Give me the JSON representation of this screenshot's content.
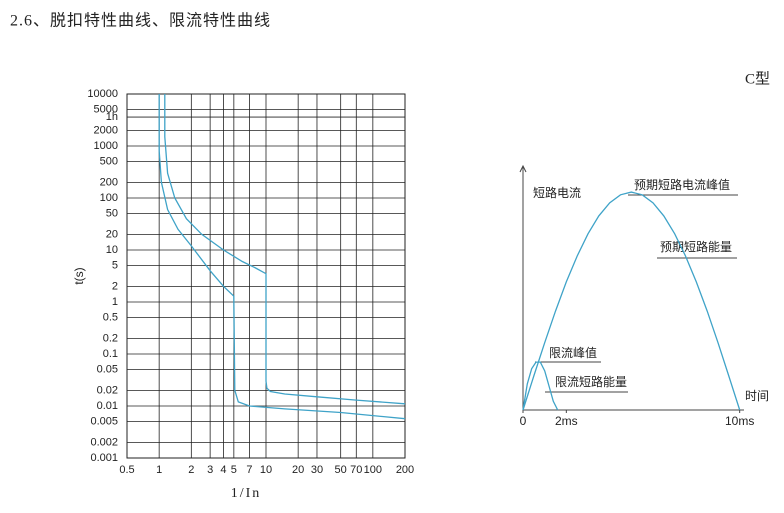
{
  "header": {
    "title": "2.6、脱扣特性曲线、限流特性曲线"
  },
  "chart_data": [
    {
      "type": "line",
      "xlabel": "1/In",
      "ylabel": "t(s)",
      "xscale": "log",
      "yscale": "log",
      "grid": true,
      "xlim": [
        0.5,
        200
      ],
      "xticks": [
        0.5,
        1,
        2,
        3,
        4,
        5,
        7,
        10,
        20,
        30,
        50,
        70,
        100,
        200
      ],
      "ylim": [
        0.001,
        10000
      ],
      "yticks": [
        10000,
        5000,
        {
          "value": 3600,
          "label": "1h"
        },
        2000,
        1000,
        500,
        200,
        100,
        50,
        20,
        10,
        5,
        2,
        1,
        0.5,
        0.2,
        0.1,
        0.05,
        0.02,
        0.01,
        0.005,
        0.002,
        0.001
      ],
      "series": [
        {
          "color": "#3fa3c8",
          "x": [
            1.13,
            1.13,
            1.2,
            1.4,
            1.8,
            2.5,
            4,
            6,
            8,
            10,
            10,
            10.2,
            11,
            15,
            30,
            70,
            200
          ],
          "values": [
            10000,
            1500,
            300,
            100,
            40,
            20,
            10,
            6,
            4.5,
            3.5,
            0.03,
            0.022,
            0.019,
            0.017,
            0.015,
            0.013,
            0.011
          ]
        },
        {
          "color": "#3fa3c8",
          "x": [
            1,
            1,
            1.05,
            1.2,
            1.5,
            2,
            3,
            4,
            5,
            5.1,
            5.5,
            7,
            15,
            50,
            200
          ],
          "values": [
            10000,
            800,
            200,
            60,
            25,
            12,
            4,
            2,
            1.3,
            0.02,
            0.012,
            0.01,
            0.0088,
            0.0075,
            0.0057
          ]
        }
      ]
    },
    {
      "type": "line",
      "title": "C型",
      "xlabel": "时间",
      "ylabel": "短路电流",
      "grid": false,
      "xlim": [
        0,
        10.2
      ],
      "xticks": [
        0,
        {
          "value": 2,
          "label": "2ms"
        },
        {
          "value": 10,
          "label": "10ms"
        }
      ],
      "ylim": [
        0,
        1.12
      ],
      "annotations": [
        "预期短路电流峰值",
        "预期短路能量",
        "限流峰值",
        "限流短路能量"
      ],
      "series": [
        {
          "color": "#3fa3c8",
          "x": [
            0,
            0.5,
            1,
            1.5,
            2,
            2.5,
            3,
            3.5,
            4,
            4.5,
            5,
            5.5,
            6,
            6.5,
            7,
            7.5,
            8,
            8.5,
            9,
            9.5,
            10
          ],
          "values": [
            0,
            0.156,
            0.309,
            0.454,
            0.588,
            0.707,
            0.809,
            0.891,
            0.951,
            0.988,
            1,
            0.988,
            0.951,
            0.891,
            0.809,
            0.707,
            0.588,
            0.454,
            0.309,
            0.156,
            0
          ]
        },
        {
          "color": "#3fa3c8",
          "x": [
            0,
            0.2,
            0.4,
            0.6,
            0.8,
            1.0,
            1.2,
            1.4,
            1.6
          ],
          "values": [
            0,
            0.12,
            0.19,
            0.22,
            0.22,
            0.18,
            0.11,
            0.04,
            0
          ]
        }
      ]
    }
  ]
}
